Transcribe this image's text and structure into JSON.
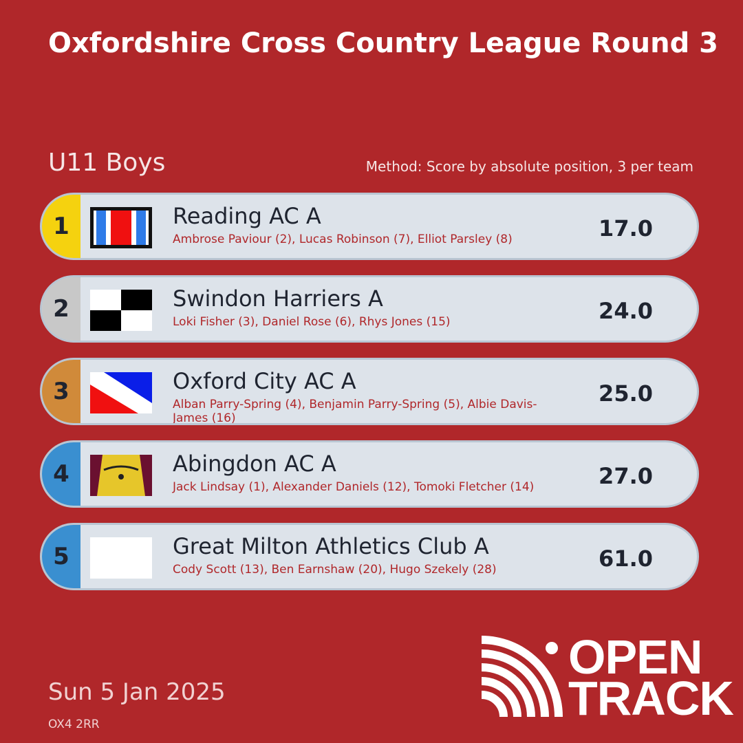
{
  "header": {
    "title": "Oxfordshire Cross Country League Round 3",
    "category": "U11 Boys",
    "method": "Method: Score by absolute position, 3 per team"
  },
  "results": [
    {
      "rank": "1",
      "team": "Reading AC A",
      "members": "Ambrose Paviour (2), Lucas Robinson (7), Elliot Parsley (8)",
      "score": "17.0"
    },
    {
      "rank": "2",
      "team": "Swindon Harriers A",
      "members": "Loki Fisher (3), Daniel Rose (6), Rhys Jones (15)",
      "score": "24.0"
    },
    {
      "rank": "3",
      "team": "Oxford City AC A",
      "members": "Alban Parry-Spring (4), Benjamin Parry-Spring (5), Albie Davis-James (16)",
      "score": "25.0"
    },
    {
      "rank": "4",
      "team": "Abingdon AC A",
      "members": "Jack Lindsay (1), Alexander Daniels (12), Tomoki Fletcher (14)",
      "score": "27.0"
    },
    {
      "rank": "5",
      "team": "Great Milton Athletics Club A",
      "members": "Cody Scott (13), Ben Earnshaw (20), Hugo Szekely (28)",
      "score": "61.0"
    }
  ],
  "footer": {
    "date": "Sun 5 Jan 2025",
    "postcode": "OX4 2RR"
  },
  "logo": [
    "OPEN",
    "TRACK"
  ]
}
